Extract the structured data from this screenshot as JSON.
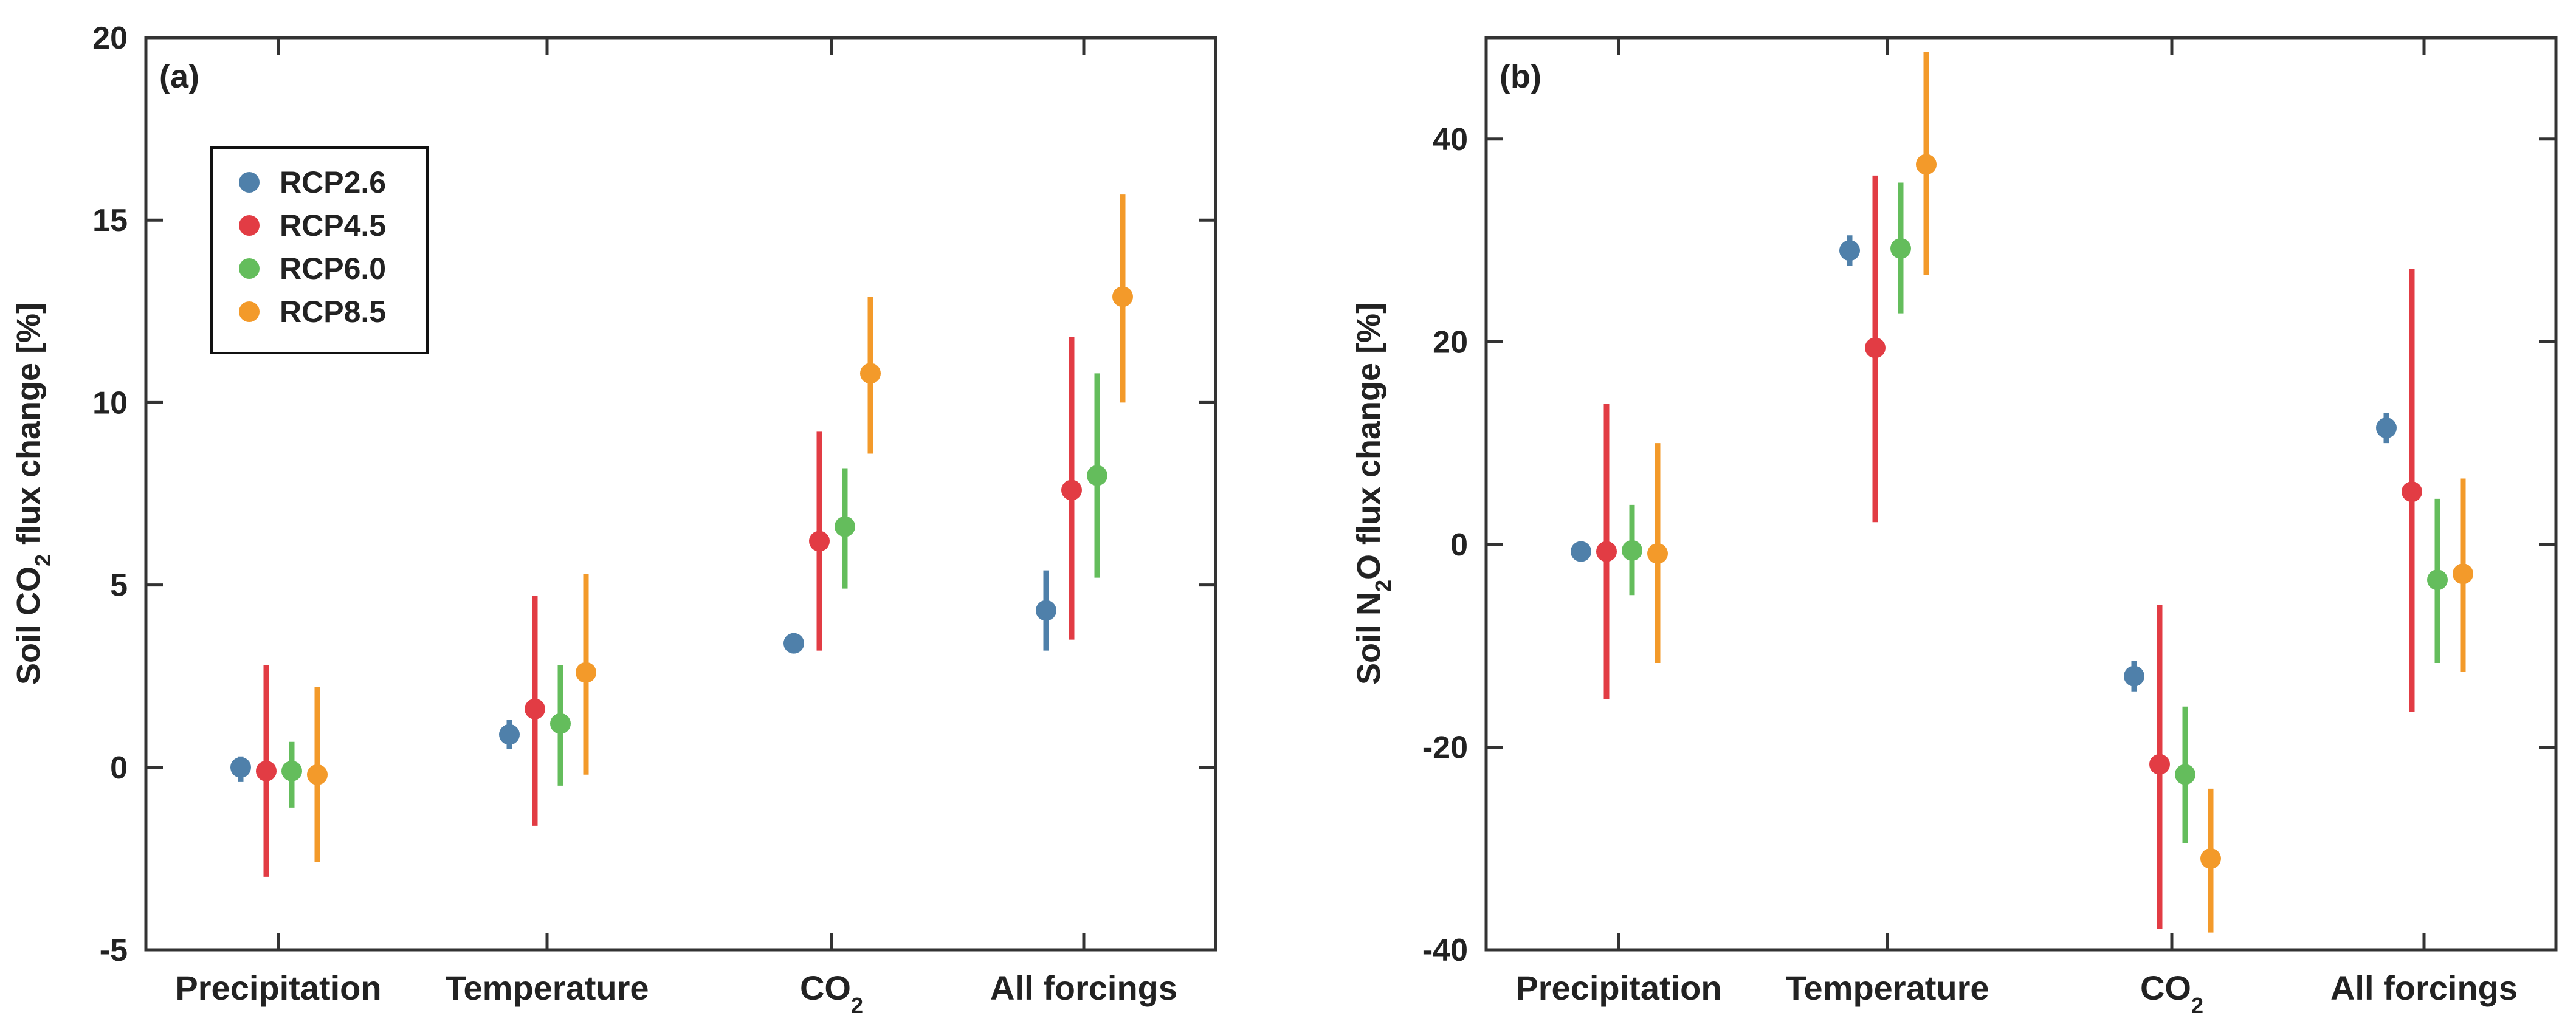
{
  "colors": {
    "RCP2.6": "#4f80aa",
    "RCP4.5": "#e23c44",
    "RCP6.0": "#64bd5c",
    "RCP8.5": "#f39a2a",
    "axis": "#333333"
  },
  "legend": [
    "RCP2.6",
    "RCP4.5",
    "RCP6.0",
    "RCP8.5"
  ],
  "chart_data": [
    {
      "type": "scatter",
      "panel_label": "(a)",
      "title": "",
      "ylabel": {
        "pre": "Soil CO",
        "sub": "2",
        "post": " flux change [%]"
      },
      "xlabel": "",
      "ylim": [
        -5,
        20
      ],
      "yticks": [
        -5,
        0,
        5,
        10,
        15,
        20
      ],
      "categories": [
        {
          "label": "Precipitation"
        },
        {
          "label": "Temperature"
        },
        {
          "label": "CO",
          "sub": "2"
        },
        {
          "label": "All forcings"
        }
      ],
      "series": [
        {
          "name": "RCP2.6",
          "values": [
            0.0,
            0.9,
            3.4,
            4.3
          ],
          "low": [
            -0.4,
            0.5,
            3.3,
            3.2
          ],
          "high": [
            0.3,
            1.3,
            3.5,
            5.4
          ]
        },
        {
          "name": "RCP4.5",
          "values": [
            -0.1,
            1.6,
            6.2,
            7.6
          ],
          "low": [
            -3.0,
            -1.6,
            3.2,
            3.5
          ],
          "high": [
            2.8,
            4.7,
            9.2,
            11.8
          ]
        },
        {
          "name": "RCP6.0",
          "values": [
            -0.1,
            1.2,
            6.6,
            8.0
          ],
          "low": [
            -1.1,
            -0.5,
            4.9,
            5.2
          ],
          "high": [
            0.7,
            2.8,
            8.2,
            10.8
          ]
        },
        {
          "name": "RCP8.5",
          "values": [
            -0.2,
            2.6,
            10.8,
            12.9
          ],
          "low": [
            -2.6,
            -0.2,
            8.6,
            10.0
          ],
          "high": [
            2.2,
            5.3,
            12.9,
            15.7
          ]
        }
      ]
    },
    {
      "type": "scatter",
      "panel_label": "(b)",
      "title": "",
      "ylabel": {
        "pre": "Soil N",
        "sub": "2",
        "post": "O flux change [%]"
      },
      "xlabel": "",
      "ylim": [
        -40,
        50
      ],
      "yticks": [
        -40,
        -20,
        0,
        20,
        40
      ],
      "categories": [
        {
          "label": "Precipitation"
        },
        {
          "label": "Temperature"
        },
        {
          "label": "CO",
          "sub": "2"
        },
        {
          "label": "All forcings"
        }
      ],
      "series": [
        {
          "name": "RCP2.6",
          "values": [
            -0.7,
            29.0,
            -13.0,
            11.5
          ],
          "low": [
            -1.5,
            27.5,
            -14.5,
            10.0
          ],
          "high": [
            0.3,
            30.5,
            -11.5,
            13.0
          ]
        },
        {
          "name": "RCP4.5",
          "values": [
            -0.7,
            19.4,
            -21.7,
            5.2
          ],
          "low": [
            -15.3,
            2.2,
            -37.9,
            -16.5
          ],
          "high": [
            13.9,
            36.4,
            -6.0,
            27.2
          ]
        },
        {
          "name": "RCP6.0",
          "values": [
            -0.6,
            29.2,
            -22.7,
            -3.5
          ],
          "low": [
            -5.0,
            22.8,
            -29.5,
            -11.7
          ],
          "high": [
            3.9,
            35.7,
            -16.0,
            4.5
          ]
        },
        {
          "name": "RCP8.5",
          "values": [
            -0.9,
            37.5,
            -31.0,
            -2.9
          ],
          "low": [
            -11.7,
            26.6,
            -38.3,
            -12.6
          ],
          "high": [
            10.0,
            48.6,
            -24.1,
            6.5
          ]
        }
      ]
    }
  ]
}
